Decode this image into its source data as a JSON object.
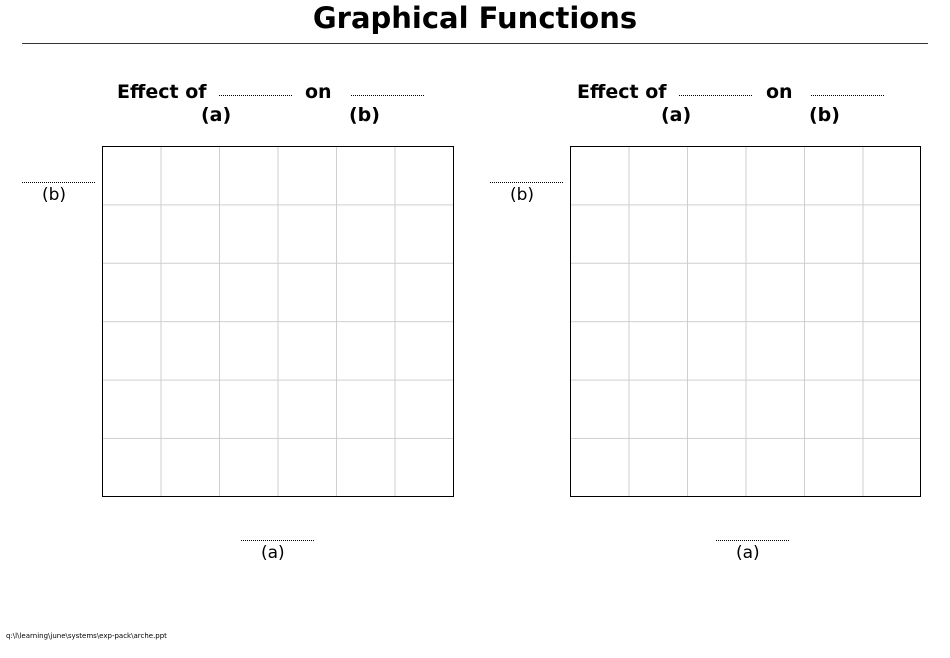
{
  "page": {
    "title": "Graphical Functions",
    "file_path": "q:\\l\\learning\\june\\systems\\exp-pack\\arche.ppt"
  },
  "panels": [
    {
      "effect_of_label": "Effect of",
      "on_label": "on",
      "cause_variable": "(a)",
      "effect_variable": "(b)",
      "y_axis_label": "(b)",
      "x_axis_label": "(a)",
      "grid": {
        "rows": 6,
        "columns": 6
      }
    },
    {
      "effect_of_label": "Effect of",
      "on_label": "on",
      "cause_variable": "(a)",
      "effect_variable": "(b)",
      "y_axis_label": "(b)",
      "x_axis_label": "(a)",
      "grid": {
        "rows": 6,
        "columns": 6
      }
    }
  ]
}
